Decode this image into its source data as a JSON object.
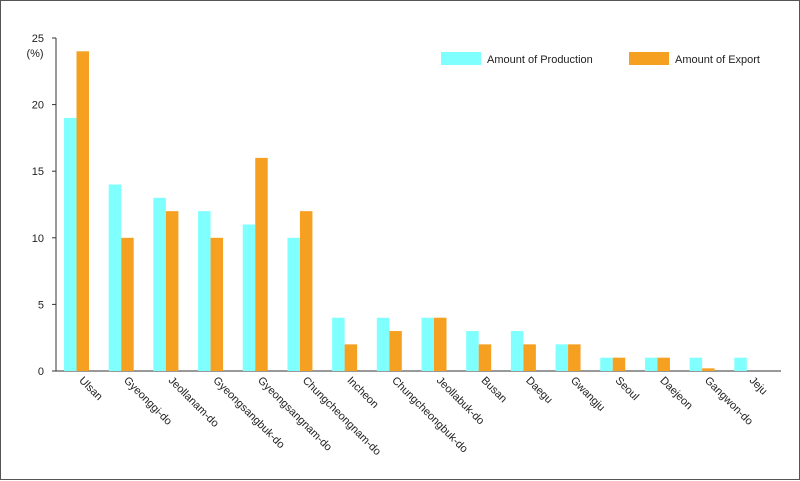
{
  "chart_data": {
    "type": "bar",
    "title": "",
    "xlabel": "",
    "ylabel": "(%)",
    "ylim": [
      0,
      25
    ],
    "yticks": [
      "0",
      "5",
      "10",
      "15",
      "20",
      "25"
    ],
    "categories": [
      "Ulsan",
      "Gyeonggi-do",
      "Jeollanam-do",
      "Gyeongsangbuk-do",
      "Gyeongsangnam-do",
      "Chungcheongnam-do",
      "Incheon",
      "Chungcheongbuk-do",
      "Jeollabuk-do",
      "Busan",
      "Daegu",
      "Gwangju",
      "Seoul",
      "Daejeon",
      "Gangwon-do",
      "Jeju"
    ],
    "series": [
      {
        "name": "Amount of Production",
        "color": "#80ffff",
        "values": [
          19,
          14,
          13,
          12,
          11,
          10,
          4,
          4,
          4,
          3,
          3,
          2,
          1,
          1,
          1,
          1
        ]
      },
      {
        "name": "Amount of Export",
        "color": "#f5a020",
        "values": [
          24,
          10,
          12,
          10,
          16,
          12,
          2,
          3,
          4,
          2,
          2,
          2,
          1,
          1,
          0.2,
          0
        ]
      }
    ],
    "legend_position": "top-right"
  }
}
